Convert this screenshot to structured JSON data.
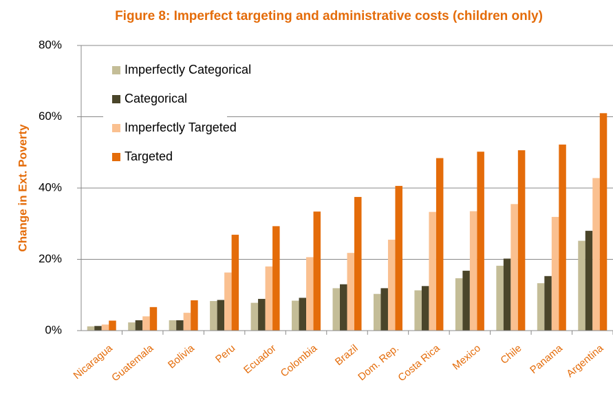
{
  "chart_data": {
    "type": "bar",
    "title": "Figure 8: Imperfect targeting and administrative costs (children only)",
    "y_label": "Change in Ext. Poverty",
    "categories": [
      "Nicaragua",
      "Guatemala",
      "Bolivia",
      "Peru",
      "Ecuador",
      "Colombia",
      "Brazil",
      "Dom. Rep.",
      "Costa Rica",
      "Mexico",
      "Chile",
      "Panama",
      "Argentina"
    ],
    "series": [
      {
        "name": "Imperfectly Categorical",
        "color": "#c4bd97",
        "values": [
          1.2,
          2.3,
          2.9,
          8.3,
          7.8,
          8.4,
          11.9,
          10.3,
          11.3,
          14.7,
          18.2,
          13.3,
          25.2
        ]
      },
      {
        "name": "Categorical",
        "color": "#4a452a",
        "values": [
          1.3,
          2.9,
          2.9,
          8.6,
          8.9,
          9.2,
          13.0,
          11.9,
          12.5,
          16.8,
          20.2,
          15.3,
          28.0
        ]
      },
      {
        "name": "Imperfectly Targeted",
        "color": "#fac090",
        "values": [
          1.7,
          4.0,
          5.0,
          16.3,
          18.0,
          20.6,
          21.8,
          25.5,
          33.3,
          33.5,
          35.5,
          31.9,
          42.8
        ]
      },
      {
        "name": "Targeted",
        "color": "#e46c0a",
        "values": [
          2.8,
          6.6,
          8.5,
          26.9,
          29.3,
          33.4,
          37.5,
          40.6,
          48.4,
          50.2,
          50.6,
          52.2,
          61.0
        ]
      }
    ],
    "ylim": [
      0,
      80
    ],
    "yticks": [
      {
        "value": 0,
        "label": "0%"
      },
      {
        "value": 20,
        "label": "20%"
      },
      {
        "value": 40,
        "label": "40%"
      },
      {
        "value": 60,
        "label": "60%"
      },
      {
        "value": 80,
        "label": "80%"
      }
    ],
    "grid": true,
    "legend": "upper left"
  }
}
